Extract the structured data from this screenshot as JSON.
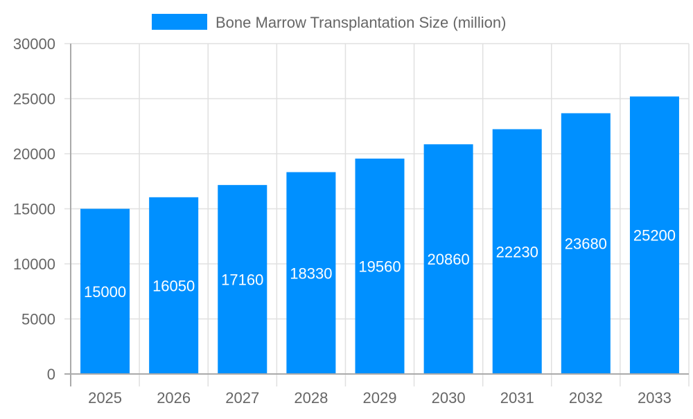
{
  "chart_data": {
    "type": "bar",
    "title": "",
    "xlabel": "",
    "ylabel": "",
    "legend": {
      "position": "top",
      "entries": [
        "Bone Marrow Transplantation Size (million)"
      ]
    },
    "categories": [
      "2025",
      "2026",
      "2027",
      "2028",
      "2029",
      "2030",
      "2031",
      "2032",
      "2033"
    ],
    "series": [
      {
        "name": "Bone Marrow Transplantation Size (million)",
        "values": [
          15000,
          16050,
          17160,
          18330,
          19560,
          20860,
          22230,
          23680,
          25200
        ],
        "color": "#0090ff"
      }
    ],
    "ylim": [
      0,
      30000
    ],
    "yticks": [
      0,
      5000,
      10000,
      15000,
      20000,
      25000,
      30000
    ],
    "grid": true,
    "data_labels": true
  }
}
